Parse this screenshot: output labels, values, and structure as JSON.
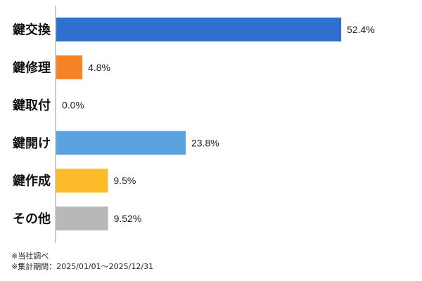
{
  "chart_data": {
    "type": "bar",
    "orientation": "horizontal",
    "categories": [
      "鍵交換",
      "鍵修理",
      "鍵取付",
      "鍵開け",
      "鍵作成",
      "その他"
    ],
    "values": [
      52.4,
      4.8,
      0.0,
      23.8,
      9.5,
      9.52
    ],
    "value_labels": [
      "52.4%",
      "4.8%",
      "0.0%",
      "23.8%",
      "9.5%",
      "9.52%"
    ],
    "colors": [
      "#2e6fcf",
      "#f58225",
      "#cccccc",
      "#5ba3e0",
      "#fdbb2a",
      "#b8b8b8"
    ],
    "xlim": [
      0,
      80
    ],
    "title": "",
    "xlabel": "",
    "ylabel": "",
    "grid": false,
    "legend": "none"
  },
  "notes": {
    "line1": "※当社調べ",
    "line2": "※集計期間：2025/01/01～2025/12/31"
  }
}
